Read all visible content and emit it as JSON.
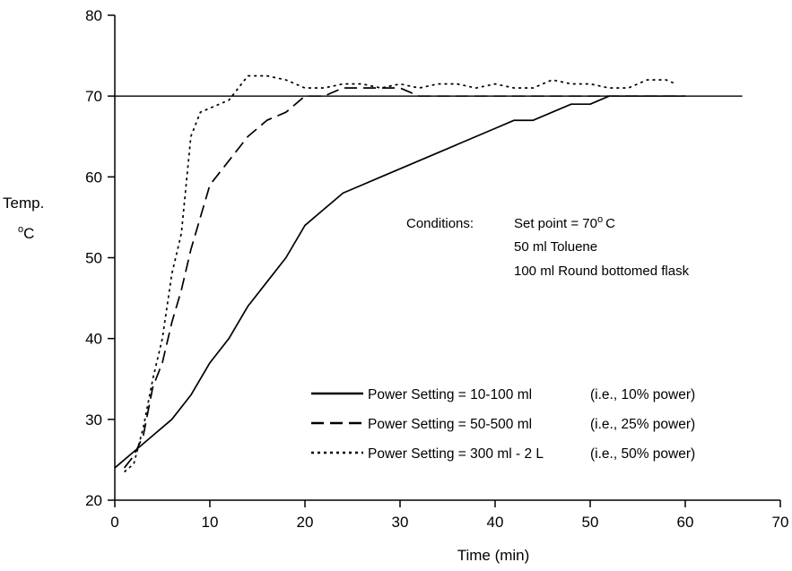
{
  "chart_data": {
    "type": "line",
    "title": "",
    "xlabel": "Time (min)",
    "ylabel_line1": "Temp.",
    "ylabel_line2": "oC",
    "xlim": [
      0,
      70
    ],
    "ylim": [
      20,
      80
    ],
    "xticks": [
      0,
      10,
      20,
      30,
      40,
      50,
      60,
      70
    ],
    "yticks": [
      20,
      30,
      40,
      50,
      60,
      70,
      80
    ],
    "grid": false,
    "reference_line": {
      "y": 70,
      "x_range": [
        0,
        66
      ]
    },
    "annotation": {
      "prefix": "Conditions:",
      "lines": [
        "Set point = 70",
        "50 ml Toluene",
        "100 ml Round bottomed flask"
      ],
      "degree_symbol": "o",
      "unit": "C"
    },
    "legend": {
      "placement": "bottom-right",
      "entries": [
        {
          "label": "Power Setting = 10-100 ml",
          "note": "(i.e., 10% power)",
          "style": "solid"
        },
        {
          "label": "Power Setting = 50-500 ml",
          "note": "(i.e., 25% power)",
          "style": "dashed"
        },
        {
          "label": "Power Setting = 300 ml - 2 L",
          "note": "(i.e., 50% power)",
          "style": "dotted"
        }
      ]
    },
    "series": [
      {
        "style": "solid",
        "points": [
          [
            0,
            24
          ],
          [
            2,
            26
          ],
          [
            4,
            28
          ],
          [
            6,
            30
          ],
          [
            8,
            33
          ],
          [
            10,
            37
          ],
          [
            12,
            40
          ],
          [
            14,
            44
          ],
          [
            16,
            47
          ],
          [
            18,
            50
          ],
          [
            20,
            54
          ],
          [
            22,
            56
          ],
          [
            24,
            58
          ],
          [
            26,
            59
          ],
          [
            28,
            60
          ],
          [
            30,
            61
          ],
          [
            32,
            62
          ],
          [
            34,
            63
          ],
          [
            36,
            64
          ],
          [
            38,
            65
          ],
          [
            40,
            66
          ],
          [
            42,
            67
          ],
          [
            44,
            67
          ],
          [
            46,
            68
          ],
          [
            48,
            69
          ],
          [
            50,
            69
          ],
          [
            52,
            70
          ],
          [
            54,
            70
          ],
          [
            56,
            70
          ],
          [
            58,
            70
          ],
          [
            60,
            70
          ]
        ]
      },
      {
        "style": "dashed",
        "points": [
          [
            1,
            24
          ],
          [
            2,
            25.5
          ],
          [
            3,
            28
          ],
          [
            4,
            34
          ],
          [
            5,
            37
          ],
          [
            6,
            42
          ],
          [
            7,
            46
          ],
          [
            8,
            51
          ],
          [
            9,
            55
          ],
          [
            10,
            59
          ],
          [
            12,
            62
          ],
          [
            14,
            65
          ],
          [
            16,
            67
          ],
          [
            18,
            68
          ],
          [
            20,
            70
          ],
          [
            22,
            70
          ],
          [
            24,
            71
          ],
          [
            26,
            71
          ],
          [
            28,
            71
          ],
          [
            30,
            71
          ],
          [
            32,
            70
          ],
          [
            34,
            70
          ],
          [
            36,
            70
          ],
          [
            38,
            70
          ],
          [
            40,
            70
          ],
          [
            42,
            70
          ],
          [
            44,
            70
          ],
          [
            46,
            70
          ],
          [
            48,
            70
          ],
          [
            50,
            70
          ],
          [
            52,
            70
          ],
          [
            54,
            70
          ],
          [
            56,
            70
          ],
          [
            58,
            70
          ],
          [
            60,
            70
          ]
        ]
      },
      {
        "style": "dotted",
        "points": [
          [
            1,
            23.5
          ],
          [
            2,
            24.5
          ],
          [
            3,
            29
          ],
          [
            4,
            35
          ],
          [
            5,
            40
          ],
          [
            6,
            48
          ],
          [
            7,
            53
          ],
          [
            8,
            65
          ],
          [
            9,
            68
          ],
          [
            10,
            68.5
          ],
          [
            12,
            69.5
          ],
          [
            14,
            72.5
          ],
          [
            16,
            72.5
          ],
          [
            18,
            72
          ],
          [
            20,
            71
          ],
          [
            22,
            71
          ],
          [
            24,
            71.5
          ],
          [
            26,
            71.5
          ],
          [
            28,
            71
          ],
          [
            30,
            71.5
          ],
          [
            32,
            71
          ],
          [
            34,
            71.5
          ],
          [
            36,
            71.5
          ],
          [
            38,
            71
          ],
          [
            40,
            71.5
          ],
          [
            42,
            71
          ],
          [
            44,
            71
          ],
          [
            46,
            72
          ],
          [
            48,
            71.5
          ],
          [
            50,
            71.5
          ],
          [
            52,
            71
          ],
          [
            54,
            71
          ],
          [
            56,
            72
          ],
          [
            58,
            72
          ],
          [
            59,
            71.5
          ]
        ]
      }
    ]
  }
}
